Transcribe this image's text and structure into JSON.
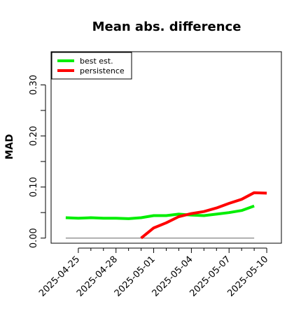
{
  "chart_data": {
    "type": "line",
    "title": "Mean abs. difference",
    "xlabel": "",
    "ylabel": "MAD",
    "xlim": [
      "2025-04-22T20:00",
      "2025-05-11T04:00"
    ],
    "ylim": [
      -0.01,
      0.365
    ],
    "y_ticks": [
      0.0,
      0.1,
      0.2,
      0.3
    ],
    "y_tick_labels": [
      "0.00",
      "0.10",
      "0.20",
      "0.30"
    ],
    "y_minor_ticks": [
      0.05,
      0.15,
      0.25
    ],
    "x_ticks": [
      "2025-04-25",
      "2025-04-28",
      "2025-05-01",
      "2025-05-04",
      "2025-05-07",
      "2025-05-10"
    ],
    "x_minor_ticks": [
      "2025-04-26",
      "2025-04-27",
      "2025-04-29",
      "2025-04-30",
      "2025-05-02",
      "2025-05-03",
      "2025-05-05",
      "2025-05-06",
      "2025-05-08",
      "2025-05-09"
    ],
    "grid": false,
    "legend_position": "top-left",
    "reference_line": {
      "y": 0.0,
      "x_from": "2025-04-24T00:00",
      "x_to": "2025-05-09T00:00",
      "color": "#777777"
    },
    "series": [
      {
        "name": "best est.",
        "color": "#00ee00",
        "x": [
          "2025-04-24T00:00",
          "2025-04-25T00:00",
          "2025-04-26T00:00",
          "2025-04-27T00:00",
          "2025-04-28T00:00",
          "2025-04-29T00:00",
          "2025-04-30T00:00",
          "2025-05-01T00:00",
          "2025-05-02T00:00",
          "2025-05-03T00:00",
          "2025-05-04T00:00",
          "2025-05-05T00:00",
          "2025-05-06T00:00",
          "2025-05-07T00:00",
          "2025-05-08T00:00",
          "2025-05-09T00:00"
        ],
        "values": [
          0.04,
          0.039,
          0.04,
          0.039,
          0.039,
          0.038,
          0.04,
          0.044,
          0.044,
          0.047,
          0.045,
          0.044,
          0.047,
          0.05,
          0.054,
          0.063
        ]
      },
      {
        "name": "persistence",
        "color": "#ff0000",
        "x": [
          "2025-04-30T00:00",
          "2025-05-01T00:00",
          "2025-05-02T00:00",
          "2025-05-03T00:00",
          "2025-05-04T00:00",
          "2025-05-05T00:00",
          "2025-05-06T00:00",
          "2025-05-07T00:00",
          "2025-05-08T00:00",
          "2025-05-09T00:00",
          "2025-05-10T00:00"
        ],
        "values": [
          0.0,
          0.02,
          0.03,
          0.042,
          0.048,
          0.052,
          0.059,
          0.068,
          0.076,
          0.089,
          0.088
        ]
      }
    ]
  }
}
